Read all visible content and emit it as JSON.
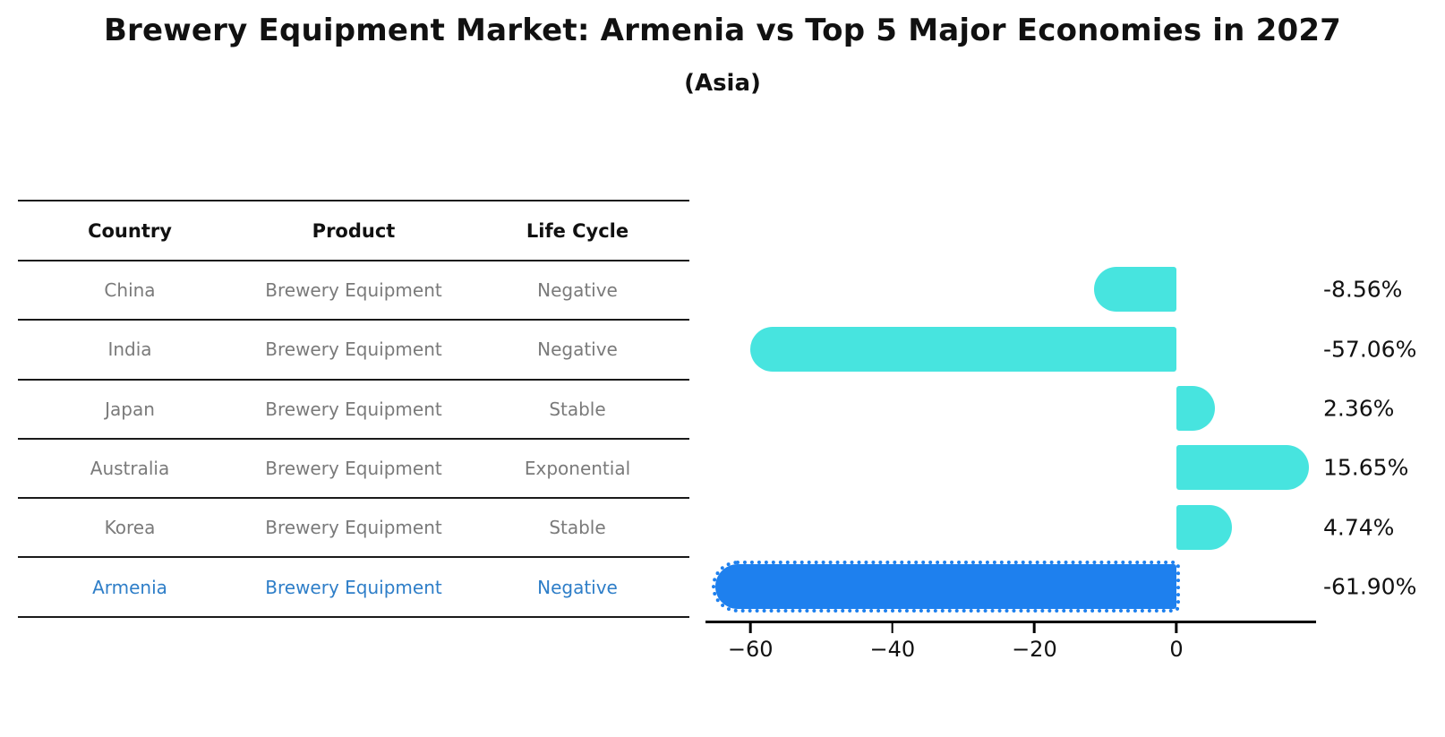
{
  "title": "Brewery Equipment Market: Armenia vs Top 5 Major Economies in 2027",
  "subtitle": "(Asia)",
  "table": {
    "headers": [
      "Country",
      "Product",
      "Life Cycle"
    ],
    "rows": [
      {
        "country": "China",
        "product": "Brewery Equipment",
        "life_cycle": "Negative"
      },
      {
        "country": "India",
        "product": "Brewery Equipment",
        "life_cycle": "Negative"
      },
      {
        "country": "Japan",
        "product": "Brewery Equipment",
        "life_cycle": "Stable"
      },
      {
        "country": "Australia",
        "product": "Brewery Equipment",
        "life_cycle": "Exponential"
      },
      {
        "country": "Korea",
        "product": "Brewery Equipment",
        "life_cycle": "Stable"
      },
      {
        "country": "Armenia",
        "product": "Brewery Equipment",
        "life_cycle": "Negative"
      }
    ]
  },
  "chart_data": {
    "type": "bar",
    "orientation": "horizontal",
    "title": "Brewery Equipment Market: Armenia vs Top 5 Major Economies in 2027",
    "subtitle": "(Asia)",
    "categories": [
      "China",
      "India",
      "Japan",
      "Australia",
      "Korea",
      "Armenia"
    ],
    "values": [
      -8.56,
      -57.06,
      2.36,
      15.65,
      4.74,
      -61.9
    ],
    "value_labels": [
      "-8.56%",
      "-57.06%",
      "2.36%",
      "15.65%",
      "4.74%",
      "-61.90%"
    ],
    "xticklabels": [
      "−60",
      "−40",
      "−20",
      "0"
    ],
    "xtick_values": [
      -60,
      -40,
      -20,
      0
    ],
    "xlim": [
      -66.3,
      19.7
    ],
    "grid": false,
    "legend": "none",
    "bar_color": "#47e4df",
    "highlight_bar_color": "#1e80ee",
    "highlight_index": 5,
    "highlight_bar_edge": "dotted"
  },
  "colors": {
    "highlight_text": "#2e7ec8",
    "body_text": "#7a7a7a",
    "header_text": "#111111",
    "axis": "#000000",
    "background": "#ffffff"
  }
}
